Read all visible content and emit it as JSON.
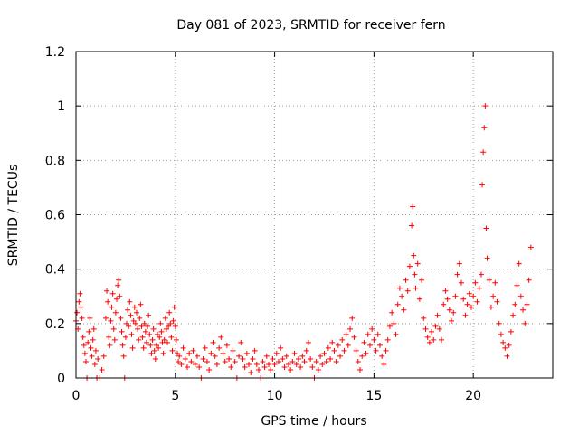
{
  "chart_data": {
    "type": "scatter",
    "title": "Day 081 of 2023, SRMTID for receiver fern",
    "xlabel": "GPS time / hours",
    "ylabel": "SRMTID / TECUs",
    "xlim": [
      0,
      24
    ],
    "ylim": [
      0,
      1.2
    ],
    "x_ticks": [
      0,
      5,
      10,
      15,
      20
    ],
    "x_tick_labels": [
      "0",
      "5",
      "10",
      "15",
      "20"
    ],
    "y_ticks": [
      0,
      0.2,
      0.4,
      0.6,
      0.8,
      1.0,
      1.2
    ],
    "y_tick_labels": [
      "0",
      "0.2",
      "0.4",
      "0.6",
      "0.8",
      "1",
      "1.2"
    ],
    "grid": true,
    "marker": "plus",
    "color": "#ff0000",
    "series": [
      {
        "name": "SRMTID",
        "points": [
          [
            0.0,
            0.21
          ],
          [
            0.05,
            0.24
          ],
          [
            0.1,
            0.18
          ],
          [
            0.15,
            0.28
          ],
          [
            0.2,
            0.31
          ],
          [
            0.25,
            0.26
          ],
          [
            0.3,
            0.22
          ],
          [
            0.35,
            0.15
          ],
          [
            0.4,
            0.12
          ],
          [
            0.45,
            0.09
          ],
          [
            0.5,
            0.06
          ],
          [
            0.55,
            0.0
          ],
          [
            0.6,
            0.13
          ],
          [
            0.65,
            0.17
          ],
          [
            0.7,
            0.22
          ],
          [
            0.75,
            0.11
          ],
          [
            0.8,
            0.08
          ],
          [
            0.85,
            0.14
          ],
          [
            0.9,
            0.18
          ],
          [
            0.95,
            0.05
          ],
          [
            1.0,
            0.1
          ],
          [
            1.05,
            0.0
          ],
          [
            1.1,
            0.07
          ],
          [
            1.2,
            0.0
          ],
          [
            1.3,
            0.03
          ],
          [
            1.4,
            0.08
          ],
          [
            1.5,
            0.22
          ],
          [
            1.55,
            0.32
          ],
          [
            1.6,
            0.28
          ],
          [
            1.65,
            0.15
          ],
          [
            1.7,
            0.12
          ],
          [
            1.75,
            0.21
          ],
          [
            1.8,
            0.26
          ],
          [
            1.85,
            0.31
          ],
          [
            1.9,
            0.18
          ],
          [
            1.95,
            0.14
          ],
          [
            2.0,
            0.24
          ],
          [
            2.05,
            0.29
          ],
          [
            2.1,
            0.34
          ],
          [
            2.15,
            0.36
          ],
          [
            2.2,
            0.3
          ],
          [
            2.25,
            0.22
          ],
          [
            2.3,
            0.17
          ],
          [
            2.35,
            0.12
          ],
          [
            2.4,
            0.08
          ],
          [
            2.45,
            0.0
          ],
          [
            2.5,
            0.15
          ],
          [
            2.55,
            0.2
          ],
          [
            2.6,
            0.25
          ],
          [
            2.65,
            0.19
          ],
          [
            2.7,
            0.28
          ],
          [
            2.75,
            0.23
          ],
          [
            2.8,
            0.16
          ],
          [
            2.85,
            0.11
          ],
          [
            2.9,
            0.21
          ],
          [
            2.95,
            0.26
          ],
          [
            3.0,
            0.2
          ],
          [
            3.05,
            0.24
          ],
          [
            3.1,
            0.18
          ],
          [
            3.15,
            0.14
          ],
          [
            3.2,
            0.22
          ],
          [
            3.25,
            0.27
          ],
          [
            3.3,
            0.19
          ],
          [
            3.35,
            0.15
          ],
          [
            3.4,
            0.11
          ],
          [
            3.45,
            0.2
          ],
          [
            3.5,
            0.17
          ],
          [
            3.55,
            0.13
          ],
          [
            3.6,
            0.19
          ],
          [
            3.65,
            0.23
          ],
          [
            3.7,
            0.16
          ],
          [
            3.75,
            0.12
          ],
          [
            3.8,
            0.09
          ],
          [
            3.85,
            0.14
          ],
          [
            3.9,
            0.18
          ],
          [
            3.95,
            0.1
          ],
          [
            4.0,
            0.07
          ],
          [
            4.05,
            0.12
          ],
          [
            4.1,
            0.16
          ],
          [
            4.15,
            0.11
          ],
          [
            4.2,
            0.15
          ],
          [
            4.25,
            0.2
          ],
          [
            4.3,
            0.17
          ],
          [
            4.35,
            0.13
          ],
          [
            4.4,
            0.09
          ],
          [
            4.45,
            0.14
          ],
          [
            4.5,
            0.22
          ],
          [
            4.55,
            0.18
          ],
          [
            4.6,
            0.13
          ],
          [
            4.65,
            0.19
          ],
          [
            4.7,
            0.24
          ],
          [
            4.75,
            0.2
          ],
          [
            4.8,
            0.15
          ],
          [
            4.85,
            0.1
          ],
          [
            4.9,
            0.21
          ],
          [
            4.95,
            0.26
          ],
          [
            5.0,
            0.19
          ],
          [
            5.05,
            0.14
          ],
          [
            5.1,
            0.09
          ],
          [
            5.15,
            0.06
          ],
          [
            5.2,
            0.08
          ],
          [
            5.3,
            0.05
          ],
          [
            5.4,
            0.11
          ],
          [
            5.5,
            0.07
          ],
          [
            5.6,
            0.04
          ],
          [
            5.7,
            0.09
          ],
          [
            5.8,
            0.06
          ],
          [
            5.9,
            0.1
          ],
          [
            6.0,
            0.05
          ],
          [
            6.1,
            0.08
          ],
          [
            6.2,
            0.04
          ],
          [
            6.3,
            0.0
          ],
          [
            6.4,
            0.07
          ],
          [
            6.5,
            0.11
          ],
          [
            6.6,
            0.06
          ],
          [
            6.7,
            0.03
          ],
          [
            6.8,
            0.09
          ],
          [
            6.9,
            0.13
          ],
          [
            7.0,
            0.08
          ],
          [
            7.1,
            0.05
          ],
          [
            7.2,
            0.11
          ],
          [
            7.3,
            0.15
          ],
          [
            7.4,
            0.09
          ],
          [
            7.5,
            0.06
          ],
          [
            7.6,
            0.12
          ],
          [
            7.7,
            0.07
          ],
          [
            7.8,
            0.04
          ],
          [
            7.9,
            0.1
          ],
          [
            8.0,
            0.06
          ],
          [
            8.1,
            0.0
          ],
          [
            8.2,
            0.08
          ],
          [
            8.3,
            0.13
          ],
          [
            8.4,
            0.07
          ],
          [
            8.5,
            0.04
          ],
          [
            8.6,
            0.09
          ],
          [
            8.7,
            0.05
          ],
          [
            8.8,
            0.02
          ],
          [
            8.9,
            0.07
          ],
          [
            9.0,
            0.1
          ],
          [
            9.1,
            0.05
          ],
          [
            9.2,
            0.03
          ],
          [
            9.3,
            0.0
          ],
          [
            9.4,
            0.06
          ],
          [
            9.5,
            0.04
          ],
          [
            9.6,
            0.08
          ],
          [
            9.7,
            0.05
          ],
          [
            9.8,
            0.03
          ],
          [
            9.9,
            0.07
          ],
          [
            10.0,
            0.05
          ],
          [
            10.1,
            0.09
          ],
          [
            10.2,
            0.06
          ],
          [
            10.3,
            0.11
          ],
          [
            10.4,
            0.07
          ],
          [
            10.5,
            0.04
          ],
          [
            10.6,
            0.08
          ],
          [
            10.7,
            0.05
          ],
          [
            10.8,
            0.03
          ],
          [
            10.9,
            0.06
          ],
          [
            11.0,
            0.09
          ],
          [
            11.1,
            0.05
          ],
          [
            11.2,
            0.07
          ],
          [
            11.3,
            0.04
          ],
          [
            11.4,
            0.08
          ],
          [
            11.5,
            0.06
          ],
          [
            11.6,
            0.1
          ],
          [
            11.7,
            0.13
          ],
          [
            11.8,
            0.07
          ],
          [
            11.9,
            0.04
          ],
          [
            12.0,
            0.0
          ],
          [
            12.1,
            0.06
          ],
          [
            12.2,
            0.03
          ],
          [
            12.3,
            0.08
          ],
          [
            12.4,
            0.05
          ],
          [
            12.5,
            0.09
          ],
          [
            12.6,
            0.06
          ],
          [
            12.7,
            0.11
          ],
          [
            12.8,
            0.07
          ],
          [
            12.9,
            0.13
          ],
          [
            13.0,
            0.1
          ],
          [
            13.1,
            0.06
          ],
          [
            13.2,
            0.12
          ],
          [
            13.3,
            0.08
          ],
          [
            13.4,
            0.14
          ],
          [
            13.5,
            0.1
          ],
          [
            13.6,
            0.16
          ],
          [
            13.7,
            0.12
          ],
          [
            13.8,
            0.18
          ],
          [
            13.9,
            0.22
          ],
          [
            14.0,
            0.15
          ],
          [
            14.1,
            0.1
          ],
          [
            14.2,
            0.06
          ],
          [
            14.3,
            0.03
          ],
          [
            14.4,
            0.08
          ],
          [
            14.5,
            0.13
          ],
          [
            14.6,
            0.09
          ],
          [
            14.7,
            0.16
          ],
          [
            14.8,
            0.12
          ],
          [
            14.9,
            0.18
          ],
          [
            15.0,
            0.14
          ],
          [
            15.1,
            0.1
          ],
          [
            15.2,
            0.16
          ],
          [
            15.3,
            0.12
          ],
          [
            15.4,
            0.08
          ],
          [
            15.5,
            0.05
          ],
          [
            15.6,
            0.1
          ],
          [
            15.7,
            0.14
          ],
          [
            15.8,
            0.19
          ],
          [
            15.9,
            0.24
          ],
          [
            16.0,
            0.2
          ],
          [
            16.1,
            0.16
          ],
          [
            16.2,
            0.27
          ],
          [
            16.3,
            0.33
          ],
          [
            16.4,
            0.3
          ],
          [
            16.5,
            0.25
          ],
          [
            16.6,
            0.36
          ],
          [
            16.7,
            0.32
          ],
          [
            16.8,
            0.41
          ],
          [
            16.9,
            0.56
          ],
          [
            16.95,
            0.63
          ],
          [
            17.0,
            0.45
          ],
          [
            17.05,
            0.38
          ],
          [
            17.1,
            0.33
          ],
          [
            17.2,
            0.42
          ],
          [
            17.3,
            0.29
          ],
          [
            17.4,
            0.36
          ],
          [
            17.5,
            0.22
          ],
          [
            17.6,
            0.18
          ],
          [
            17.7,
            0.15
          ],
          [
            17.8,
            0.13
          ],
          [
            17.9,
            0.17
          ],
          [
            18.0,
            0.14
          ],
          [
            18.1,
            0.19
          ],
          [
            18.2,
            0.23
          ],
          [
            18.3,
            0.18
          ],
          [
            18.4,
            0.14
          ],
          [
            18.5,
            0.27
          ],
          [
            18.6,
            0.32
          ],
          [
            18.7,
            0.29
          ],
          [
            18.8,
            0.25
          ],
          [
            18.9,
            0.21
          ],
          [
            19.0,
            0.24
          ],
          [
            19.1,
            0.3
          ],
          [
            19.2,
            0.38
          ],
          [
            19.3,
            0.42
          ],
          [
            19.4,
            0.35
          ],
          [
            19.5,
            0.29
          ],
          [
            19.6,
            0.23
          ],
          [
            19.7,
            0.27
          ],
          [
            19.8,
            0.31
          ],
          [
            19.9,
            0.26
          ],
          [
            20.0,
            0.3
          ],
          [
            20.1,
            0.35
          ],
          [
            20.2,
            0.28
          ],
          [
            20.3,
            0.33
          ],
          [
            20.4,
            0.38
          ],
          [
            20.45,
            0.71
          ],
          [
            20.5,
            0.83
          ],
          [
            20.55,
            0.92
          ],
          [
            20.6,
            1.0
          ],
          [
            20.65,
            0.55
          ],
          [
            20.7,
            0.44
          ],
          [
            20.8,
            0.36
          ],
          [
            20.9,
            0.26
          ],
          [
            21.0,
            0.3
          ],
          [
            21.1,
            0.35
          ],
          [
            21.2,
            0.28
          ],
          [
            21.3,
            0.2
          ],
          [
            21.4,
            0.16
          ],
          [
            21.5,
            0.13
          ],
          [
            21.6,
            0.11
          ],
          [
            21.7,
            0.08
          ],
          [
            21.8,
            0.12
          ],
          [
            21.9,
            0.17
          ],
          [
            22.0,
            0.23
          ],
          [
            22.1,
            0.27
          ],
          [
            22.2,
            0.34
          ],
          [
            22.3,
            0.42
          ],
          [
            22.4,
            0.3
          ],
          [
            22.5,
            0.25
          ],
          [
            22.6,
            0.2
          ],
          [
            22.7,
            0.27
          ],
          [
            22.8,
            0.36
          ],
          [
            22.9,
            0.48
          ]
        ]
      }
    ]
  }
}
